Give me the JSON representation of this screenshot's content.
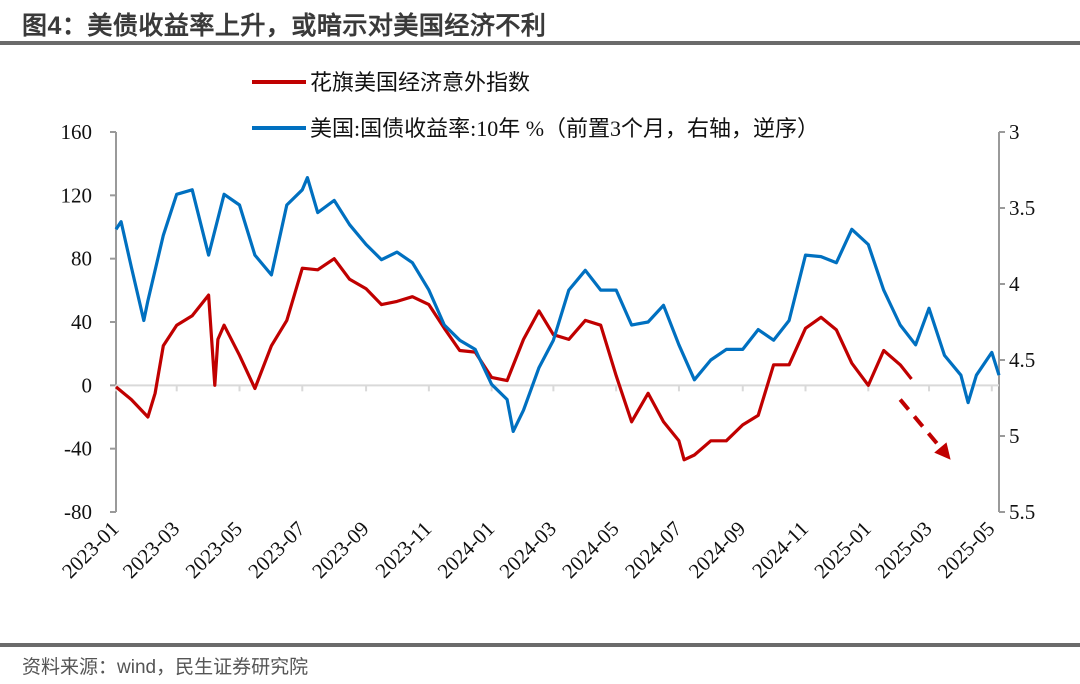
{
  "title": "图4：美债收益率上升，或暗示对美国经济不利",
  "source": "资料来源：wind，民生证券研究院",
  "chart_data": {
    "type": "line",
    "title": "图4：美债收益率上升，或暗示对美国经济不利",
    "x_range": [
      "2023-01-01",
      "2025-05-08"
    ],
    "x_ticks": [
      "2023-01",
      "2023-03",
      "2023-05",
      "2023-07",
      "2023-09",
      "2023-11",
      "2024-01",
      "2024-03",
      "2024-05",
      "2024-07",
      "2024-09",
      "2024-11",
      "2025-01",
      "2025-03",
      "2025-05"
    ],
    "left_axis": {
      "ylim": [
        -80,
        160
      ],
      "ticks": [
        "160",
        "120",
        "80",
        "40",
        "0",
        "-40",
        "-80"
      ]
    },
    "right_axis": {
      "ylim": [
        3,
        5.5
      ],
      "reversed": true,
      "ticks": [
        "3",
        "3.5",
        "4",
        "4.5",
        "5",
        "5.5"
      ]
    },
    "grid": false,
    "legend_placement": "top",
    "series": [
      {
        "name": "花旗美国经济意外指数",
        "axis": "left",
        "color": "#C00000",
        "points": [
          [
            "2023-01-01",
            -1
          ],
          [
            "2023-01-16",
            -9
          ],
          [
            "2023-02-01",
            -20
          ],
          [
            "2023-02-08",
            -5
          ],
          [
            "2023-02-16",
            25
          ],
          [
            "2023-03-01",
            38
          ],
          [
            "2023-03-16",
            44
          ],
          [
            "2023-04-01",
            57
          ],
          [
            "2023-04-07",
            0
          ],
          [
            "2023-04-10",
            29
          ],
          [
            "2023-04-16",
            38
          ],
          [
            "2023-05-01",
            19
          ],
          [
            "2023-05-16",
            -2
          ],
          [
            "2023-06-01",
            25
          ],
          [
            "2023-06-16",
            41
          ],
          [
            "2023-07-01",
            74
          ],
          [
            "2023-07-16",
            73
          ],
          [
            "2023-08-01",
            80
          ],
          [
            "2023-08-16",
            67
          ],
          [
            "2023-09-01",
            61
          ],
          [
            "2023-09-16",
            51
          ],
          [
            "2023-10-01",
            53
          ],
          [
            "2023-10-16",
            56
          ],
          [
            "2023-11-01",
            51
          ],
          [
            "2023-11-16",
            36
          ],
          [
            "2023-12-01",
            22
          ],
          [
            "2023-12-16",
            21
          ],
          [
            "2024-01-01",
            5
          ],
          [
            "2024-01-16",
            3
          ],
          [
            "2024-02-01",
            29
          ],
          [
            "2024-02-16",
            47
          ],
          [
            "2024-03-01",
            32
          ],
          [
            "2024-03-16",
            29
          ],
          [
            "2024-04-01",
            41
          ],
          [
            "2024-04-16",
            38
          ],
          [
            "2024-05-01",
            6
          ],
          [
            "2024-05-16",
            -23
          ],
          [
            "2024-06-01",
            -5
          ],
          [
            "2024-06-16",
            -23
          ],
          [
            "2024-07-01",
            -35
          ],
          [
            "2024-07-06",
            -47
          ],
          [
            "2024-07-16",
            -44
          ],
          [
            "2024-08-01",
            -35
          ],
          [
            "2024-08-16",
            -35
          ],
          [
            "2024-09-01",
            -25
          ],
          [
            "2024-09-16",
            -19
          ],
          [
            "2024-10-01",
            13
          ],
          [
            "2024-10-16",
            13
          ],
          [
            "2024-11-01",
            36
          ],
          [
            "2024-11-16",
            43
          ],
          [
            "2024-12-01",
            35
          ],
          [
            "2024-12-16",
            14
          ],
          [
            "2025-01-01",
            0
          ],
          [
            "2025-01-16",
            22
          ],
          [
            "2025-02-01",
            13
          ],
          [
            "2025-02-12",
            4
          ]
        ]
      },
      {
        "name": "美国:国债收益率:10年 %（前置3个月，右轴，逆序）",
        "axis": "right",
        "color": "#0070C0",
        "points": [
          [
            "2023-01-01",
            3.64
          ],
          [
            "2023-01-06",
            3.59
          ],
          [
            "2023-01-16",
            3.89
          ],
          [
            "2023-01-28",
            4.24
          ],
          [
            "2023-02-01",
            4.11
          ],
          [
            "2023-02-16",
            3.68
          ],
          [
            "2023-03-01",
            3.41
          ],
          [
            "2023-03-16",
            3.38
          ],
          [
            "2023-04-01",
            3.81
          ],
          [
            "2023-04-16",
            3.41
          ],
          [
            "2023-05-01",
            3.48
          ],
          [
            "2023-05-16",
            3.81
          ],
          [
            "2023-06-01",
            3.94
          ],
          [
            "2023-06-16",
            3.48
          ],
          [
            "2023-07-01",
            3.38
          ],
          [
            "2023-07-06",
            3.3
          ],
          [
            "2023-07-16",
            3.53
          ],
          [
            "2023-08-01",
            3.45
          ],
          [
            "2023-08-16",
            3.61
          ],
          [
            "2023-09-01",
            3.74
          ],
          [
            "2023-09-16",
            3.84
          ],
          [
            "2023-10-01",
            3.79
          ],
          [
            "2023-10-16",
            3.86
          ],
          [
            "2023-11-01",
            4.04
          ],
          [
            "2023-11-16",
            4.27
          ],
          [
            "2023-12-01",
            4.37
          ],
          [
            "2023-12-16",
            4.43
          ],
          [
            "2024-01-01",
            4.66
          ],
          [
            "2024-01-16",
            4.76
          ],
          [
            "2024-01-22",
            4.97
          ],
          [
            "2024-02-01",
            4.83
          ],
          [
            "2024-02-16",
            4.55
          ],
          [
            "2024-03-01",
            4.37
          ],
          [
            "2024-03-16",
            4.04
          ],
          [
            "2024-04-01",
            3.91
          ],
          [
            "2024-04-16",
            4.04
          ],
          [
            "2024-05-01",
            4.04
          ],
          [
            "2024-05-16",
            4.27
          ],
          [
            "2024-06-01",
            4.25
          ],
          [
            "2024-06-16",
            4.14
          ],
          [
            "2024-07-01",
            4.4
          ],
          [
            "2024-07-16",
            4.63
          ],
          [
            "2024-08-01",
            4.5
          ],
          [
            "2024-08-16",
            4.43
          ],
          [
            "2024-09-01",
            4.43
          ],
          [
            "2024-09-16",
            4.3
          ],
          [
            "2024-10-01",
            4.37
          ],
          [
            "2024-10-16",
            4.24
          ],
          [
            "2024-11-01",
            3.81
          ],
          [
            "2024-11-16",
            3.82
          ],
          [
            "2024-12-01",
            3.86
          ],
          [
            "2024-12-16",
            3.64
          ],
          [
            "2025-01-01",
            3.74
          ],
          [
            "2025-01-16",
            4.04
          ],
          [
            "2025-02-01",
            4.27
          ],
          [
            "2025-02-16",
            4.4
          ],
          [
            "2025-03-01",
            4.16
          ],
          [
            "2025-03-16",
            4.47
          ],
          [
            "2025-04-01",
            4.6
          ],
          [
            "2025-04-08",
            4.78
          ],
          [
            "2025-04-16",
            4.6
          ],
          [
            "2025-05-01",
            4.45
          ],
          [
            "2025-05-08",
            4.6
          ]
        ]
      }
    ],
    "annotations": [
      {
        "type": "dashed-arrow",
        "color": "#C00000",
        "axis": "left",
        "from": [
          "2025-02-01",
          -9
        ],
        "to": [
          "2025-03-22",
          -47
        ]
      }
    ]
  }
}
